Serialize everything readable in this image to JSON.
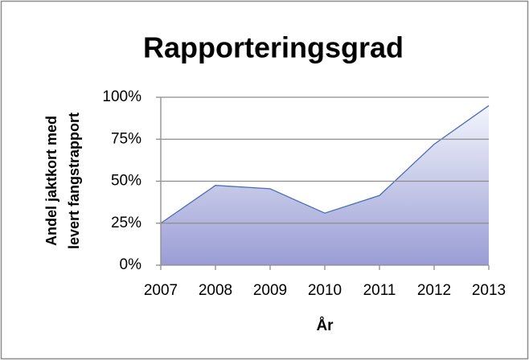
{
  "chart_data": {
    "type": "area",
    "title": "Rapporteringsgrad",
    "ylabel": [
      "Andel jaktkort med",
      "levert fangstrapport"
    ],
    "xlabel": "År",
    "categories": [
      "2007",
      "2008",
      "2009",
      "2010",
      "2011",
      "2012",
      "2013"
    ],
    "values": [
      25,
      47.5,
      45.5,
      31,
      41.5,
      72,
      95
    ],
    "line_color": "#4a6fb5",
    "fill_gradient": [
      "#f2f5fc",
      "#9a9dd4"
    ],
    "ylim": [
      0,
      100
    ],
    "yticks": [
      {
        "value": 0,
        "label": "0%"
      },
      {
        "value": 25,
        "label": "25%"
      },
      {
        "value": 50,
        "label": "50%"
      },
      {
        "value": 75,
        "label": "75%"
      },
      {
        "value": 100,
        "label": "100%"
      }
    ],
    "grid": true
  }
}
